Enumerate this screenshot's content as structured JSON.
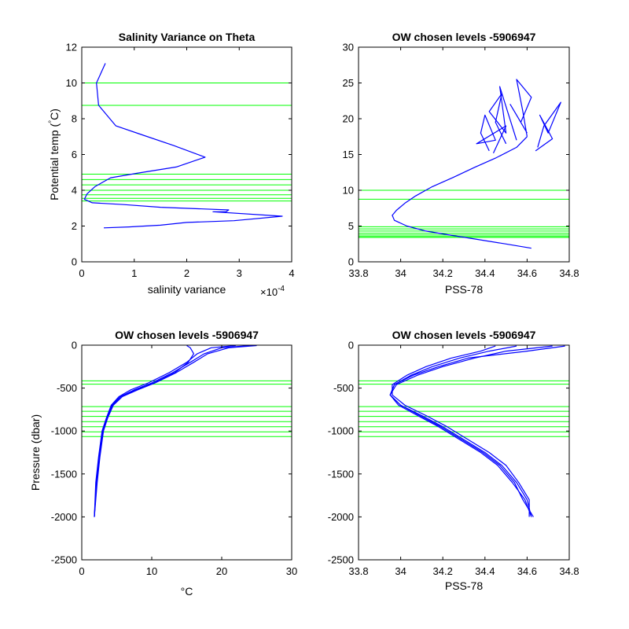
{
  "chart_data": [
    {
      "type": "line",
      "title": "Salinity Variance on Theta",
      "xlabel": "salinity variance",
      "ylabel": "Potential temp (°C)",
      "ylabel_parts": [
        "Potential temp (",
        "°",
        "C)"
      ],
      "x_exponent_label": "×10",
      "x_exponent_power": "-4",
      "xlim": [
        0,
        4
      ],
      "ylim": [
        0,
        12
      ],
      "xticks": [
        0,
        1,
        2,
        3,
        4
      ],
      "yticks": [
        0,
        2,
        4,
        6,
        8,
        10,
        12
      ],
      "xtick_labels": [
        "0",
        "1",
        "2",
        "3",
        "4"
      ],
      "ytick_labels": [
        "0",
        "2",
        "4",
        "6",
        "8",
        "10",
        "12"
      ],
      "grid": false,
      "hlines": [
        10.0,
        8.75,
        4.9,
        4.6,
        4.3,
        4.0,
        3.75,
        3.55,
        3.4
      ],
      "series": [
        {
          "x": [
            0.42,
            0.9,
            1.5,
            2.0,
            2.9,
            3.82,
            2.5,
            2.75,
            2.8,
            1.5,
            0.8,
            0.2,
            0.05,
            0.1,
            0.25,
            0.55,
            1.05,
            1.8,
            2.35,
            1.75,
            1.15,
            0.65,
            0.32,
            0.28,
            0.45
          ],
          "y": [
            1.9,
            1.95,
            2.05,
            2.2,
            2.3,
            2.55,
            2.8,
            2.8,
            2.9,
            3.05,
            3.2,
            3.3,
            3.5,
            3.8,
            4.2,
            4.7,
            4.95,
            5.3,
            5.85,
            6.5,
            7.1,
            7.6,
            8.75,
            10.0,
            11.1
          ]
        }
      ]
    },
    {
      "type": "line",
      "title": "OW chosen levels -5906947",
      "xlabel": "PSS-78",
      "ylabel": "",
      "xlim": [
        33.8,
        34.8
      ],
      "ylim": [
        0,
        30
      ],
      "xticks": [
        33.8,
        34.0,
        34.2,
        34.4,
        34.6,
        34.8
      ],
      "yticks": [
        0,
        5,
        10,
        15,
        20,
        25,
        30
      ],
      "xtick_labels": [
        "33.8",
        "34",
        "34.2",
        "34.4",
        "34.6",
        "34.8"
      ],
      "ytick_labels": [
        "0",
        "5",
        "10",
        "15",
        "20",
        "25",
        "30"
      ],
      "grid": false,
      "hlines": [
        10.0,
        8.75,
        4.9,
        4.6,
        4.3,
        4.0,
        3.75,
        3.55,
        3.4
      ],
      "series": [
        {
          "x": [
            34.62,
            34.5,
            34.35,
            34.22,
            34.12,
            34.03,
            33.97,
            33.96,
            33.98,
            34.02,
            34.07,
            34.15,
            34.25,
            34.35,
            34.45,
            34.55,
            34.6
          ],
          "y": [
            1.9,
            2.5,
            3.2,
            3.8,
            4.3,
            5.0,
            5.8,
            6.5,
            7.2,
            8.2,
            9.2,
            10.5,
            11.8,
            13.2,
            14.5,
            16.0,
            17.5
          ]
        },
        {
          "x": [
            34.6,
            34.58,
            34.55,
            34.62,
            34.57,
            34.52,
            34.6
          ],
          "y": [
            17.5,
            21.0,
            25.5,
            23.0,
            19.5,
            22.0,
            18.0
          ]
        },
        {
          "x": [
            34.5,
            34.45,
            34.48,
            34.42,
            34.5,
            34.47,
            34.55
          ],
          "y": [
            16.5,
            19.5,
            23.5,
            21.0,
            18.0,
            24.5,
            17.0
          ]
        },
        {
          "x": [
            34.65,
            34.68,
            34.76,
            34.7,
            34.66,
            34.72,
            34.64
          ],
          "y": [
            16.0,
            19.0,
            22.3,
            18.0,
            20.5,
            17.2,
            15.5
          ]
        },
        {
          "x": [
            34.42,
            34.38,
            34.4,
            34.45,
            34.36,
            34.5,
            34.44
          ],
          "y": [
            15.5,
            18.0,
            20.5,
            17.0,
            16.5,
            19.0,
            15.2
          ]
        }
      ]
    },
    {
      "type": "line",
      "title": "OW chosen levels -5906947",
      "xlabel": "°C",
      "ylabel": "Pressure (dbar)",
      "xlim": [
        0,
        30
      ],
      "ylim": [
        -2500,
        0
      ],
      "xticks": [
        0,
        10,
        20,
        30
      ],
      "yticks": [
        -2500,
        -2000,
        -1500,
        -1000,
        -500,
        0
      ],
      "xtick_labels": [
        "0",
        "10",
        "20",
        "30"
      ],
      "ytick_labels": [
        "-2500",
        "-2000",
        "-1500",
        "-1000",
        "-500",
        "0"
      ],
      "grid": false,
      "hlines": [
        -415,
        -455,
        -715,
        -770,
        -830,
        -890,
        -950,
        -1010,
        -1065
      ],
      "series": [
        {
          "x": [
            1.8,
            2.1,
            2.5,
            3.0,
            3.6,
            4.3,
            5.5,
            7.5,
            10.0,
            13.0,
            15.5,
            17.5,
            20.0,
            24.0
          ],
          "y": [
            -2000,
            -1600,
            -1300,
            -1000,
            -850,
            -700,
            -600,
            -520,
            -440,
            -320,
            -200,
            -100,
            -30,
            -5
          ]
        },
        {
          "x": [
            1.8,
            2.2,
            2.6,
            3.1,
            3.7,
            4.5,
            5.8,
            8.0,
            10.5,
            13.5,
            16.0,
            18.0,
            21.0,
            25.0
          ],
          "y": [
            -2000,
            -1600,
            -1300,
            -1000,
            -850,
            -700,
            -600,
            -520,
            -440,
            -320,
            -200,
            -100,
            -30,
            -5
          ]
        },
        {
          "x": [
            1.8,
            2.0,
            2.4,
            2.9,
            3.5,
            4.2,
            5.3,
            7.0,
            9.5,
            12.5,
            15.0,
            16.5,
            18.5,
            22.0
          ],
          "y": [
            -2000,
            -1600,
            -1300,
            -1000,
            -850,
            -700,
            -600,
            -520,
            -440,
            -320,
            -200,
            -100,
            -30,
            -5
          ]
        },
        {
          "x": [
            1.8,
            2.1,
            2.5,
            3.0,
            3.6,
            4.4,
            5.6,
            7.8,
            10.3,
            13.3,
            15.2,
            16.0,
            15.5,
            15.0
          ],
          "y": [
            -2000,
            -1600,
            -1300,
            -1000,
            -850,
            -700,
            -600,
            -520,
            -440,
            -320,
            -200,
            -100,
            -30,
            -5
          ]
        }
      ]
    },
    {
      "type": "line",
      "title": "OW chosen levels -5906947",
      "xlabel": "PSS-78",
      "ylabel": "",
      "xlim": [
        33.8,
        34.8
      ],
      "ylim": [
        -2500,
        0
      ],
      "xticks": [
        33.8,
        34.0,
        34.2,
        34.4,
        34.6,
        34.8
      ],
      "yticks": [
        -2500,
        -2000,
        -1500,
        -1000,
        -500,
        0
      ],
      "xtick_labels": [
        "33.8",
        "34",
        "34.2",
        "34.4",
        "34.6",
        "34.8"
      ],
      "ytick_labels": [
        "-2500",
        "-2000",
        "-1500",
        "-1000",
        "-500",
        "0"
      ],
      "grid": false,
      "hlines": [
        -415,
        -455,
        -715,
        -770,
        -830,
        -890,
        -950,
        -1010,
        -1065
      ],
      "series": [
        {
          "x": [
            34.62,
            34.6,
            34.55,
            34.48,
            34.4,
            34.3,
            34.2,
            34.1,
            34.0,
            33.95,
            33.97,
            34.05,
            34.15,
            34.28,
            34.42,
            34.55
          ],
          "y": [
            -2000,
            -1800,
            -1600,
            -1400,
            -1250,
            -1100,
            -950,
            -820,
            -700,
            -580,
            -460,
            -350,
            -250,
            -150,
            -70,
            -10
          ]
        },
        {
          "x": [
            34.62,
            34.59,
            34.53,
            34.46,
            34.38,
            34.28,
            34.18,
            34.08,
            33.99,
            33.95,
            33.98,
            34.08,
            34.2,
            34.35,
            34.5,
            34.72
          ],
          "y": [
            -2000,
            -1800,
            -1600,
            -1400,
            -1250,
            -1100,
            -950,
            -820,
            -700,
            -580,
            -460,
            -350,
            -250,
            -150,
            -70,
            -10
          ]
        },
        {
          "x": [
            34.61,
            34.61,
            34.56,
            34.5,
            34.42,
            34.32,
            34.22,
            34.12,
            34.02,
            33.96,
            33.96,
            34.03,
            34.12,
            34.24,
            34.38,
            34.45
          ],
          "y": [
            -2000,
            -1800,
            -1600,
            -1400,
            -1250,
            -1100,
            -950,
            -820,
            -700,
            -580,
            -460,
            -350,
            -250,
            -150,
            -70,
            -10
          ]
        },
        {
          "x": [
            34.63,
            34.58,
            34.54,
            34.47,
            34.39,
            34.29,
            34.19,
            34.09,
            34.0,
            33.95,
            33.97,
            34.06,
            34.18,
            34.32,
            34.6,
            34.78
          ],
          "y": [
            -2000,
            -1800,
            -1600,
            -1400,
            -1250,
            -1100,
            -950,
            -820,
            -700,
            -580,
            -460,
            -350,
            -250,
            -150,
            -70,
            -10
          ]
        }
      ]
    }
  ],
  "colors": {
    "series": "#0000ff",
    "hlines": "#00ff00",
    "axes": "#000000",
    "background": "#ffffff"
  }
}
